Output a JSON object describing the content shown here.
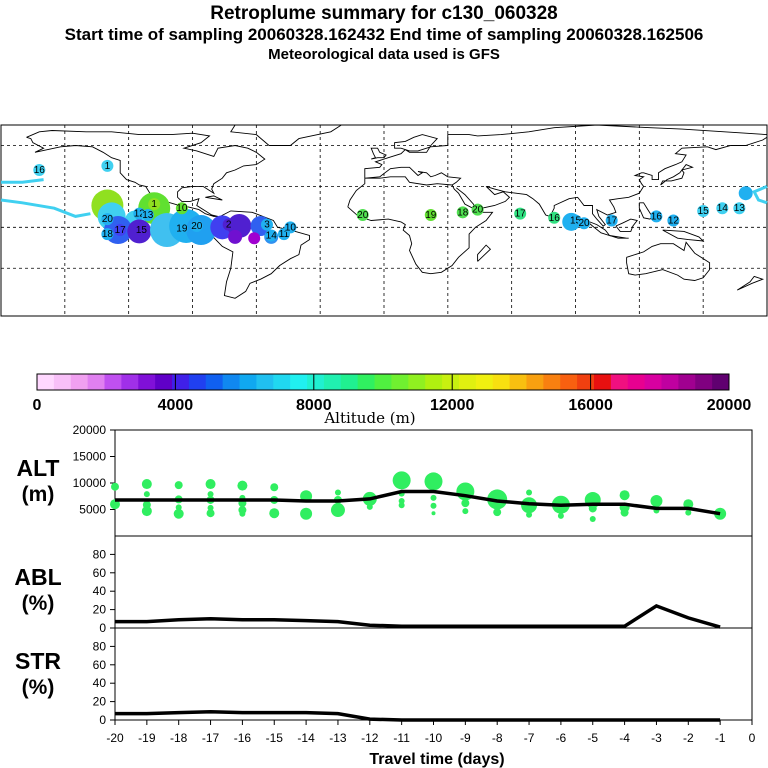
{
  "header": {
    "title": "Retroplume summary for c130_060328",
    "subtitle": "Start time of sampling 20060328.162432     End time of sampling 20060328.162506",
    "met_line": "Meteorological data used is GFS"
  },
  "map": {
    "labels": [
      {
        "text": "1",
        "lon": -130,
        "lat": 45,
        "color": "#40d0f0"
      },
      {
        "text": "16",
        "lon": -162,
        "lat": 42,
        "color": "#40d0f0"
      },
      {
        "text": "1",
        "lon": -108,
        "lat": 17,
        "color": "#90e020"
      },
      {
        "text": "10",
        "lon": -95,
        "lat": 14,
        "color": "#60e030"
      },
      {
        "text": "12",
        "lon": -115,
        "lat": 10,
        "color": "#20b0f0"
      },
      {
        "text": "13",
        "lon": -111,
        "lat": 9,
        "color": "#20b0f0"
      },
      {
        "text": "20",
        "lon": -130,
        "lat": 6,
        "color": "#20b0f0"
      },
      {
        "text": "17",
        "lon": -124,
        "lat": -2,
        "color": "#4040f0"
      },
      {
        "text": "15",
        "lon": -114,
        "lat": -2,
        "color": "#5020d0"
      },
      {
        "text": "18",
        "lon": -130,
        "lat": -5,
        "color": "#20b0f0"
      },
      {
        "text": "19",
        "lon": -95,
        "lat": -1,
        "color": "#20b0f0"
      },
      {
        "text": "20",
        "lon": -88,
        "lat": 1,
        "color": "#20b0f0"
      },
      {
        "text": "2",
        "lon": -73,
        "lat": 2,
        "color": "#5020d0"
      },
      {
        "text": "3",
        "lon": -55,
        "lat": 2,
        "color": "#20b0f0"
      },
      {
        "text": "14",
        "lon": -53,
        "lat": -6,
        "color": "#20b0f0"
      },
      {
        "text": "11",
        "lon": -47,
        "lat": -5,
        "color": "#20b0f0"
      },
      {
        "text": "10",
        "lon": -44,
        "lat": 0,
        "color": "#20b0f0"
      },
      {
        "text": "20",
        "lon": -10,
        "lat": 9,
        "color": "#50e050"
      },
      {
        "text": "19",
        "lon": 22,
        "lat": 9,
        "color": "#60e030"
      },
      {
        "text": "18",
        "lon": 37,
        "lat": 11,
        "color": "#50e050"
      },
      {
        "text": "20",
        "lon": 44,
        "lat": 13,
        "color": "#50e050"
      },
      {
        "text": "17",
        "lon": 64,
        "lat": 10,
        "color": "#30e080"
      },
      {
        "text": "16",
        "lon": 80,
        "lat": 7,
        "color": "#30e080"
      },
      {
        "text": "15",
        "lon": 90,
        "lat": 5,
        "color": "#20b0f0"
      },
      {
        "text": "20",
        "lon": 94,
        "lat": 3,
        "color": "#20b0f0"
      },
      {
        "text": "17",
        "lon": 107,
        "lat": 5,
        "color": "#20b0f0"
      },
      {
        "text": "16",
        "lon": 128,
        "lat": 8,
        "color": "#20b0f0"
      },
      {
        "text": "12",
        "lon": 136,
        "lat": 5,
        "color": "#20b0f0"
      },
      {
        "text": "15",
        "lon": 150,
        "lat": 12,
        "color": "#40d0f0"
      },
      {
        "text": "14",
        "lon": 159,
        "lat": 14,
        "color": "#40d0f0"
      },
      {
        "text": "13",
        "lon": 167,
        "lat": 14,
        "color": "#40d0f0"
      }
    ],
    "blobs": [
      {
        "lon": -130,
        "lat": 16,
        "r": 16,
        "color": "#90e020"
      },
      {
        "lon": -108,
        "lat": 14,
        "r": 16,
        "color": "#60e030"
      },
      {
        "lon": -128,
        "lat": 8,
        "r": 14,
        "color": "#40d0f0"
      },
      {
        "lon": -117,
        "lat": 5,
        "r": 10,
        "color": "#40d0f0"
      },
      {
        "lon": -125,
        "lat": -2,
        "r": 14,
        "color": "#3060f0"
      },
      {
        "lon": -115,
        "lat": -3,
        "r": 12,
        "color": "#5020d0"
      },
      {
        "lon": -102,
        "lat": -2,
        "r": 17,
        "color": "#40c0f0"
      },
      {
        "lon": -93,
        "lat": 1,
        "r": 17,
        "color": "#20b0f0"
      },
      {
        "lon": -86,
        "lat": -2,
        "r": 15,
        "color": "#20a0f0"
      },
      {
        "lon": -76,
        "lat": 0,
        "r": 12,
        "color": "#4040f0"
      },
      {
        "lon": -68,
        "lat": 1,
        "r": 12,
        "color": "#5020d0"
      },
      {
        "lon": -58,
        "lat": 1,
        "r": 10,
        "color": "#3060f0"
      },
      {
        "lon": -70,
        "lat": -7,
        "r": 7,
        "color": "#7010d0"
      },
      {
        "lon": -61,
        "lat": -8,
        "r": 6,
        "color": "#a000d0"
      },
      {
        "lon": -53,
        "lat": -7,
        "r": 7,
        "color": "#3090f0"
      },
      {
        "lon": 88,
        "lat": 4,
        "r": 9,
        "color": "#20b0f0"
      },
      {
        "lon": 170,
        "lat": 25,
        "r": 7,
        "color": "#20b0f0"
      }
    ],
    "lines": [
      {
        "color": "#40d0f0",
        "pts": [
          [
            -180,
            33
          ],
          [
            -170,
            33
          ],
          [
            -160,
            35
          ]
        ]
      },
      {
        "color": "#40d0f0",
        "pts": [
          [
            -180,
            20
          ],
          [
            -170,
            18
          ],
          [
            -155,
            14
          ],
          [
            -145,
            8
          ],
          [
            -138,
            10
          ]
        ]
      },
      {
        "color": "#40d0f0",
        "pts": [
          [
            180,
            30
          ],
          [
            174,
            26
          ],
          [
            176,
            20
          ],
          [
            180,
            18
          ]
        ]
      }
    ]
  },
  "colorbar": {
    "tick_labels": [
      "0",
      "4000",
      "8000",
      "12000",
      "16000",
      "20000"
    ],
    "label": "Altitude (m)",
    "colors": [
      "#ffd8ff",
      "#f8c0f8",
      "#f0a0f0",
      "#e080f0",
      "#c050f0",
      "#a030e8",
      "#8010d8",
      "#6000c8",
      "#4020e8",
      "#2040f0",
      "#1060f0",
      "#1088f0",
      "#10a8f0",
      "#20c0f0",
      "#20d8f0",
      "#20f0f0",
      "#20f0d0",
      "#20f0b0",
      "#20f090",
      "#30f060",
      "#50f040",
      "#70f030",
      "#90f020",
      "#b0f010",
      "#c8f010",
      "#e0f010",
      "#f0f010",
      "#f8e010",
      "#f8c010",
      "#f8a010",
      "#f88010",
      "#f86010",
      "#f04010",
      "#e81010",
      "#f01080",
      "#e80090",
      "#d800a0",
      "#c000a0",
      "#a00090",
      "#800080",
      "#600070"
    ]
  },
  "chart_data": {
    "type": "line",
    "x": [
      -20,
      -19,
      -18,
      -17,
      -16,
      -15,
      -14,
      -13,
      -12,
      -11,
      -10,
      -9,
      -8,
      -7,
      -6,
      -5,
      -4,
      -3,
      -2,
      -1
    ],
    "xlabel": "Travel time (days)",
    "xlim": [
      -20,
      0
    ],
    "xticks": [
      "-20",
      "-19",
      "-18",
      "-17",
      "-16",
      "-15",
      "-14",
      "-13",
      "-12",
      "-11",
      "-10",
      "-9",
      "-8",
      "-7",
      "-6",
      "-5",
      "-4",
      "-3",
      "-2",
      "-1",
      "0"
    ],
    "alt": {
      "ylabel_top": "ALT",
      "ylabel_bottom": "(m)",
      "ylim": [
        0,
        20000
      ],
      "yticks": [
        "5000",
        "10000",
        "15000",
        "20000"
      ],
      "mean": [
        6800,
        6800,
        6800,
        6800,
        6800,
        6800,
        6600,
        6600,
        7000,
        8400,
        8400,
        7600,
        6600,
        6100,
        5800,
        6000,
        6000,
        5200,
        5200,
        4200
      ],
      "scatter": [
        {
          "day": -20,
          "alt": 9300,
          "s": 4
        },
        {
          "day": -20,
          "alt": 6000,
          "s": 5
        },
        {
          "day": -19,
          "alt": 9800,
          "s": 5
        },
        {
          "day": -19,
          "alt": 7900,
          "s": 3
        },
        {
          "day": -19,
          "alt": 5900,
          "s": 4
        },
        {
          "day": -19,
          "alt": 4700,
          "s": 5
        },
        {
          "day": -18,
          "alt": 9600,
          "s": 4
        },
        {
          "day": -18,
          "alt": 6900,
          "s": 4
        },
        {
          "day": -18,
          "alt": 5400,
          "s": 3
        },
        {
          "day": -18,
          "alt": 4200,
          "s": 5
        },
        {
          "day": -17,
          "alt": 9800,
          "s": 5
        },
        {
          "day": -17,
          "alt": 7900,
          "s": 3
        },
        {
          "day": -17,
          "alt": 6800,
          "s": 4
        },
        {
          "day": -17,
          "alt": 5300,
          "s": 3
        },
        {
          "day": -17,
          "alt": 4300,
          "s": 4
        },
        {
          "day": -16,
          "alt": 9500,
          "s": 5
        },
        {
          "day": -16,
          "alt": 7200,
          "s": 3
        },
        {
          "day": -16,
          "alt": 6200,
          "s": 4
        },
        {
          "day": -16,
          "alt": 4900,
          "s": 4
        },
        {
          "day": -16,
          "alt": 4200,
          "s": 3
        },
        {
          "day": -15,
          "alt": 9200,
          "s": 4
        },
        {
          "day": -15,
          "alt": 6800,
          "s": 4
        },
        {
          "day": -15,
          "alt": 4300,
          "s": 5
        },
        {
          "day": -14,
          "alt": 7500,
          "s": 6
        },
        {
          "day": -14,
          "alt": 4200,
          "s": 6
        },
        {
          "day": -13,
          "alt": 8200,
          "s": 3
        },
        {
          "day": -13,
          "alt": 6800,
          "s": 4
        },
        {
          "day": -13,
          "alt": 4900,
          "s": 7
        },
        {
          "day": -12,
          "alt": 7000,
          "s": 7
        },
        {
          "day": -12,
          "alt": 5500,
          "s": 3
        },
        {
          "day": -11,
          "alt": 10500,
          "s": 9
        },
        {
          "day": -11,
          "alt": 8000,
          "s": 3
        },
        {
          "day": -11,
          "alt": 6600,
          "s": 3
        },
        {
          "day": -11,
          "alt": 5800,
          "s": 3
        },
        {
          "day": -10,
          "alt": 10300,
          "s": 9
        },
        {
          "day": -10,
          "alt": 7200,
          "s": 3
        },
        {
          "day": -10,
          "alt": 5700,
          "s": 3
        },
        {
          "day": -10,
          "alt": 4300,
          "s": 2
        },
        {
          "day": -9,
          "alt": 8400,
          "s": 9
        },
        {
          "day": -9,
          "alt": 6200,
          "s": 4
        },
        {
          "day": -9,
          "alt": 4700,
          "s": 3
        },
        {
          "day": -8,
          "alt": 6900,
          "s": 10
        },
        {
          "day": -8,
          "alt": 4500,
          "s": 4
        },
        {
          "day": -7,
          "alt": 8200,
          "s": 3
        },
        {
          "day": -7,
          "alt": 5800,
          "s": 8
        },
        {
          "day": -7,
          "alt": 4000,
          "s": 3
        },
        {
          "day": -6,
          "alt": 5900,
          "s": 9
        },
        {
          "day": -6,
          "alt": 3800,
          "s": 3
        },
        {
          "day": -5,
          "alt": 6800,
          "s": 8
        },
        {
          "day": -5,
          "alt": 5200,
          "s": 4
        },
        {
          "day": -5,
          "alt": 3200,
          "s": 3
        },
        {
          "day": -4,
          "alt": 7700,
          "s": 5
        },
        {
          "day": -4,
          "alt": 5400,
          "s": 5
        },
        {
          "day": -4,
          "alt": 4400,
          "s": 4
        },
        {
          "day": -3,
          "alt": 6600,
          "s": 6
        },
        {
          "day": -3,
          "alt": 4800,
          "s": 3
        },
        {
          "day": -2,
          "alt": 6000,
          "s": 5
        },
        {
          "day": -2,
          "alt": 4400,
          "s": 3
        },
        {
          "day": -1,
          "alt": 4200,
          "s": 6
        }
      ]
    },
    "abl": {
      "ylabel_top": "ABL",
      "ylabel_bottom": "(%)",
      "ylim": [
        0,
        100
      ],
      "yticks": [
        "0",
        "20",
        "40",
        "60",
        "80"
      ],
      "values": [
        7,
        7,
        9,
        10,
        9,
        9,
        8,
        7,
        3,
        2,
        2,
        2,
        2,
        2,
        2,
        2,
        2,
        24,
        11,
        1
      ]
    },
    "str": {
      "ylabel_top": "STR",
      "ylabel_bottom": "(%)",
      "ylim": [
        0,
        100
      ],
      "yticks": [
        "0",
        "20",
        "40",
        "60",
        "80"
      ],
      "values": [
        7,
        7,
        8,
        9,
        8,
        8,
        8,
        7,
        1,
        0,
        0,
        0,
        0,
        0,
        0,
        0,
        0,
        0,
        0,
        0
      ]
    }
  }
}
